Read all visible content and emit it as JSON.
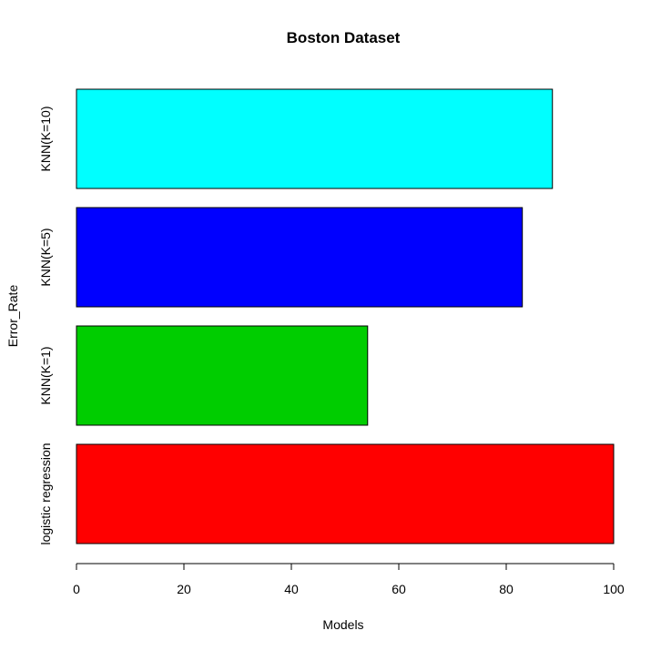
{
  "chart_data": {
    "type": "bar",
    "orientation": "horizontal",
    "title": "Boston Dataset",
    "xlabel": "Models",
    "ylabel": "Error_Rate",
    "categories": [
      "logistic regression",
      "KNN(K=1)",
      "KNN(K=5)",
      "KNN(K=10)"
    ],
    "values": [
      100,
      54.2,
      83,
      88.6
    ],
    "colors": [
      "#ff0000",
      "#00cd00",
      "#0000ff",
      "#00ffff"
    ],
    "xlim": [
      0,
      100
    ],
    "xticks": [
      0,
      20,
      40,
      60,
      80,
      100
    ],
    "grid": false,
    "legend": "none"
  }
}
